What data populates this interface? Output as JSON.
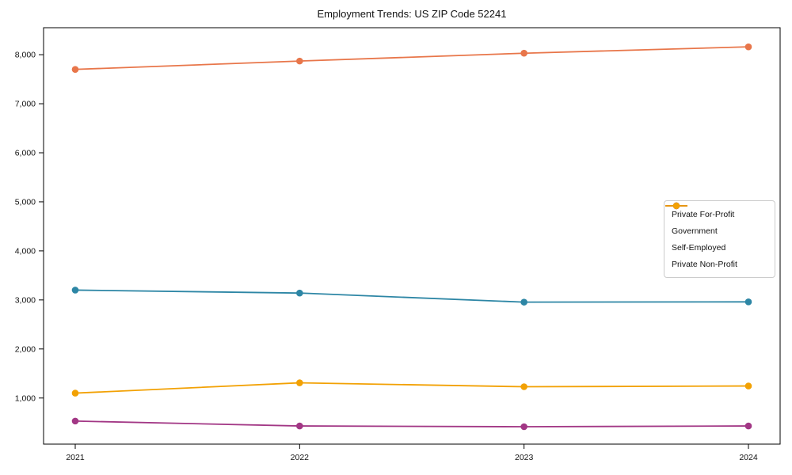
{
  "chart_data": {
    "type": "line",
    "title": "Employment Trends: US ZIP Code 52241",
    "x": [
      "2021",
      "2022",
      "2023",
      "2024"
    ],
    "series": [
      {
        "name": "Private For-Profit",
        "color": "#E8764A",
        "values": [
          7700,
          7870,
          8030,
          8160
        ]
      },
      {
        "name": "Government",
        "color": "#2D86A5",
        "values": [
          3200,
          3140,
          2955,
          2960
        ]
      },
      {
        "name": "Self-Employed",
        "color": "#A23785",
        "values": [
          530,
          430,
          415,
          430
        ]
      },
      {
        "name": "Private Non-Profit",
        "color": "#F2A104",
        "values": [
          1100,
          1310,
          1230,
          1245
        ]
      }
    ],
    "yticks": [
      {
        "v": 1000,
        "label": "1,000"
      },
      {
        "v": 2000,
        "label": "2,000"
      },
      {
        "v": 3000,
        "label": "3,000"
      },
      {
        "v": 4000,
        "label": "4,000"
      },
      {
        "v": 5000,
        "label": "5,000"
      },
      {
        "v": 6000,
        "label": "6,000"
      },
      {
        "v": 7000,
        "label": "7,000"
      },
      {
        "v": 8000,
        "label": "8,000"
      }
    ],
    "ylim": [
      60,
      8550
    ],
    "xlabel": "",
    "ylabel": "",
    "grid": false,
    "legend_position": "center right",
    "line_color_axis": "#000000"
  }
}
